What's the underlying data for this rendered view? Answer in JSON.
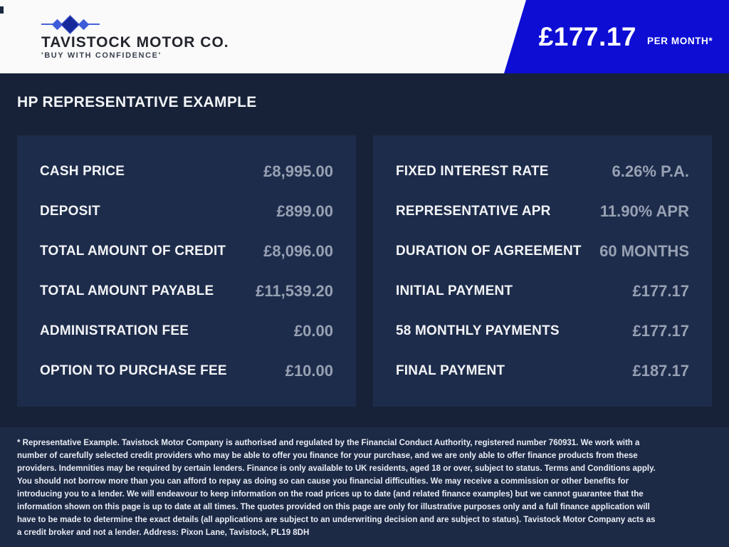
{
  "header": {
    "logo": {
      "company_name": "TAVISTOCK MOTOR CO.",
      "tagline": "'BUY WITH CONFIDENCE'"
    },
    "price_banner": {
      "amount": "£177.17",
      "period": "PER MONTH*"
    }
  },
  "main": {
    "title": "HP REPRESENTATIVE EXAMPLE",
    "left_panel": {
      "rows": [
        {
          "label": "CASH PRICE",
          "value": "£8,995.00"
        },
        {
          "label": "DEPOSIT",
          "value": "£899.00"
        },
        {
          "label": "TOTAL AMOUNT OF CREDIT",
          "value": "£8,096.00"
        },
        {
          "label": "TOTAL AMOUNT PAYABLE",
          "value": "£11,539.20"
        },
        {
          "label": "ADMINISTRATION FEE",
          "value": "£0.00"
        },
        {
          "label": "OPTION TO PURCHASE FEE",
          "value": "£10.00"
        }
      ]
    },
    "right_panel": {
      "rows": [
        {
          "label": "FIXED INTEREST RATE",
          "value": "6.26% P.A."
        },
        {
          "label": "REPRESENTATIVE APR",
          "value": "11.90% APR"
        },
        {
          "label": "DURATION OF AGREEMENT",
          "value": "60 MONTHS"
        },
        {
          "label": "INITIAL PAYMENT",
          "value": "£177.17"
        },
        {
          "label": "58 MONTHLY PAYMENTS",
          "value": "£177.17"
        },
        {
          "label": "FINAL PAYMENT",
          "value": "£187.17"
        }
      ]
    }
  },
  "footer": {
    "disclaimer": "* Representative Example. Tavistock Motor Company is authorised and regulated by the Financial Conduct Authority, registered number 760931. We work with a number of carefully selected credit providers who may be able to offer you finance for your purchase, and we are only able to offer finance products from these providers. Indemnities may be required by certain lenders. Finance is only available to UK residents, aged 18 or over, subject to status. Terms and Conditions apply. You should not borrow more than you can afford to repay as doing so can cause you financial difficulties. We may receive a commission or other benefits for introducing you to a lender. We will endeavour to keep information on the road prices up to date (and related finance examples) but we cannot guarantee that the information shown on this page is up to date at all times. The quotes provided on this page are only for illustrative purposes only and a full finance application will have to be made to determine the exact details (all applications are subject to an underwriting decision and are subject to status). Tavistock Motor Company acts as a credit broker and not a lender. Address: Pixon Lane, Tavistock, PL19 8DH"
  },
  "colors": {
    "banner_blue": "#0d0dd4",
    "body_bg": "#172238",
    "panel_bg": "#1e2c4b",
    "footer_bg": "#1d2a46",
    "label_text": "#f2f4f7",
    "value_text": "#97a1b3"
  }
}
